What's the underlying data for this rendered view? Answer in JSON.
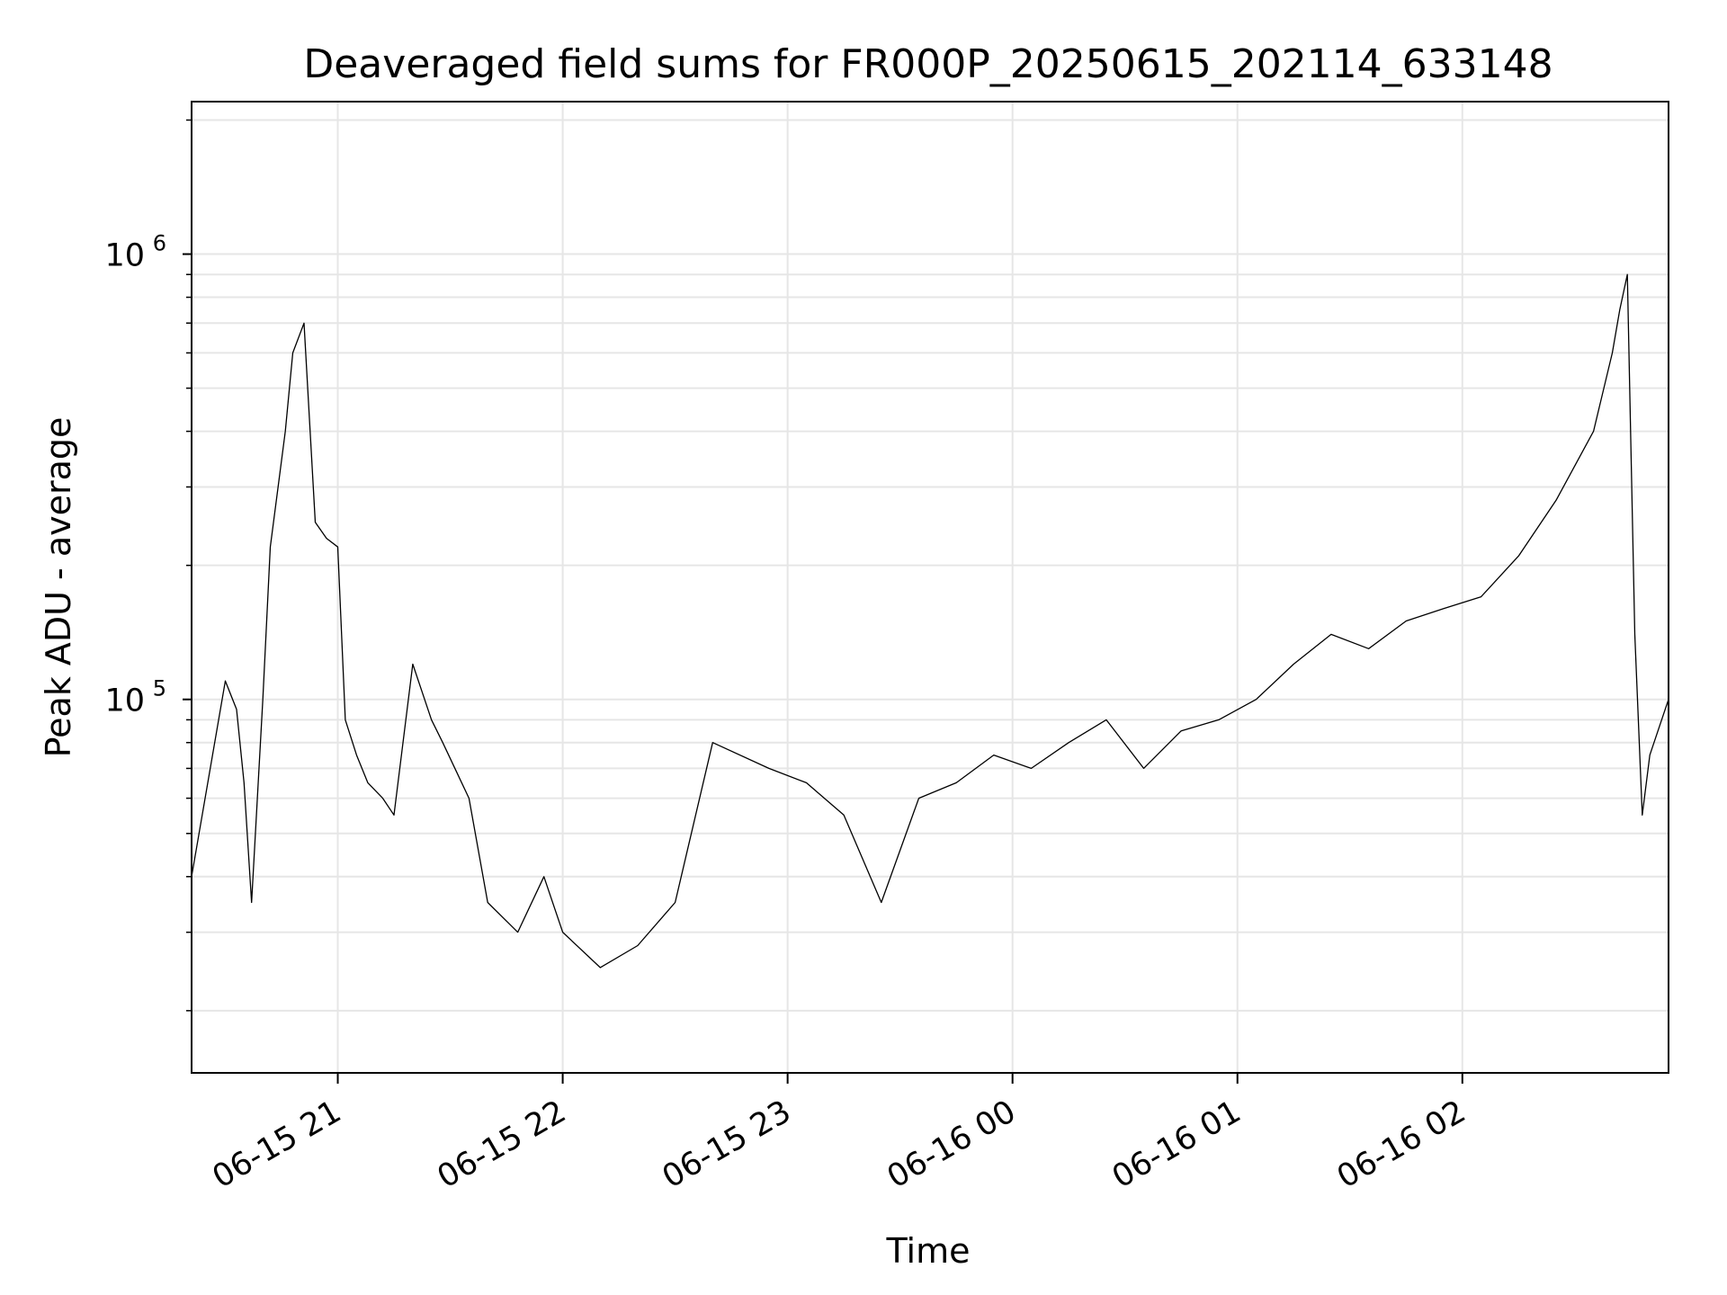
{
  "chart_data": {
    "type": "line",
    "title": "Deaveraged field sums for FR000P_20250615_202114_633148",
    "xlabel": "Time",
    "ylabel": "Peak ADU - average",
    "x_range": [
      "06-15 20:21",
      "06-16 02:55"
    ],
    "y_range": [
      14500,
      2200000
    ],
    "y_scale": "log",
    "grid": true,
    "line_color": "#000000",
    "x_ticks": [
      "06-15 21",
      "06-15 22",
      "06-15 23",
      "06-16 00",
      "06-16 01",
      "06-16 02"
    ],
    "y_ticks": [
      {
        "base": "10",
        "exp": "5",
        "value": 100000
      },
      {
        "base": "10",
        "exp": "6",
        "value": 1000000
      }
    ],
    "series": [
      {
        "x": [
          "20:21",
          "20:30",
          "20:33",
          "20:35",
          "20:37",
          "20:40",
          "20:42",
          "20:46",
          "20:48",
          "20:51",
          "20:54",
          "20:57",
          "21:00",
          "21:02",
          "21:05",
          "21:08",
          "21:12",
          "21:15",
          "21:20",
          "21:25",
          "21:28",
          "21:35",
          "21:40",
          "21:48",
          "21:55",
          "22:00",
          "22:10",
          "22:20",
          "22:30",
          "22:40",
          "22:55",
          "23:05",
          "23:15",
          "23:25",
          "23:35",
          "23:45",
          "23:55",
          "00:05",
          "00:15",
          "00:25",
          "00:35",
          "00:45",
          "00:55",
          "01:05",
          "01:15",
          "01:25",
          "01:35",
          "01:45",
          "01:55",
          "02:05",
          "02:15",
          "02:25",
          "02:35",
          "02:40",
          "02:42",
          "02:44",
          "02:46",
          "02:48",
          "02:50",
          "02:55"
        ],
        "y": [
          40000,
          110000,
          95000,
          65000,
          35000,
          100000,
          220000,
          400000,
          600000,
          700000,
          250000,
          230000,
          220000,
          90000,
          75000,
          65000,
          60000,
          55000,
          120000,
          90000,
          80000,
          60000,
          35000,
          30000,
          40000,
          30000,
          25000,
          28000,
          35000,
          80000,
          70000,
          65000,
          55000,
          35000,
          60000,
          65000,
          75000,
          70000,
          80000,
          90000,
          70000,
          85000,
          90000,
          100000,
          120000,
          140000,
          130000,
          150000,
          160000,
          170000,
          210000,
          280000,
          400000,
          600000,
          750000,
          900000,
          140000,
          55000,
          75000,
          100000
        ]
      }
    ]
  }
}
